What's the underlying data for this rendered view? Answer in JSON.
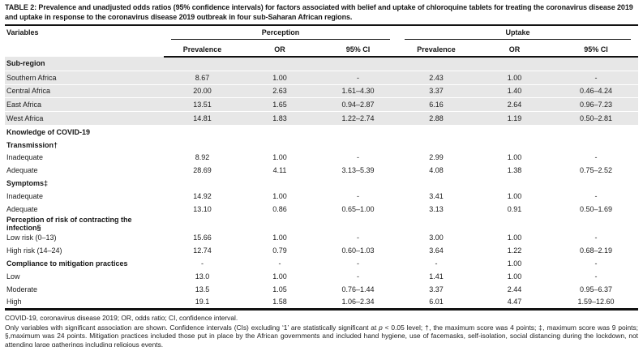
{
  "title": "TABLE 2: Prevalence and unadjusted odds ratios (95% confidence intervals) for factors associated with belief and uptake of chloroquine tablets for treating the coronavirus disease 2019 and uptake in response to the coronavirus disease 2019 outbreak in four sub-Saharan African regions.",
  "table": {
    "variables_header": "Variables",
    "group_headers": {
      "perception": "Perception",
      "uptake": "Uptake"
    },
    "sub_headers": [
      "Prevalence",
      "OR",
      "95% CI",
      "Prevalence",
      "OR",
      "95% CI"
    ],
    "shaded_row_color": "#e7e7e7",
    "rows": [
      {
        "label": "Sub-region",
        "section": true,
        "shaded": true,
        "values": [
          "",
          "",
          "",
          "",
          "",
          ""
        ]
      },
      {
        "label": "Southern Africa",
        "section": false,
        "shaded": true,
        "values": [
          "8.67",
          "1.00",
          "-",
          "2.43",
          "1.00",
          "-"
        ]
      },
      {
        "label": "Central Africa",
        "section": false,
        "shaded": true,
        "values": [
          "20.00",
          "2.63",
          "1.61–4.30",
          "3.37",
          "1.40",
          "0.46–4.24"
        ]
      },
      {
        "label": "East Africa",
        "section": false,
        "shaded": true,
        "values": [
          "13.51",
          "1.65",
          "0.94–2.87",
          "6.16",
          "2.64",
          "0.96–7.23"
        ]
      },
      {
        "label": "West Africa",
        "section": false,
        "shaded": true,
        "values": [
          "14.81",
          "1.83",
          "1.22–2.74",
          "2.88",
          "1.19",
          "0.50–2.81"
        ]
      },
      {
        "label": "Knowledge of COVID-19",
        "section": true,
        "shaded": false,
        "values": [
          "",
          "",
          "",
          "",
          "",
          ""
        ]
      },
      {
        "label": "Transmission†",
        "section": true,
        "shaded": false,
        "values": [
          "",
          "",
          "",
          "",
          "",
          ""
        ]
      },
      {
        "label": "Inadequate",
        "section": false,
        "shaded": false,
        "values": [
          "8.92",
          "1.00",
          "-",
          "2.99",
          "1.00",
          "-"
        ]
      },
      {
        "label": "Adequate",
        "section": false,
        "shaded": false,
        "values": [
          "28.69",
          "4.11",
          "3.13–5.39",
          "4.08",
          "1.38",
          "0.75–2.52"
        ]
      },
      {
        "label": "Symptoms‡",
        "section": true,
        "shaded": false,
        "values": [
          "",
          "",
          "",
          "",
          "",
          ""
        ]
      },
      {
        "label": "Inadequate",
        "section": false,
        "shaded": false,
        "values": [
          "14.92",
          "1.00",
          "-",
          "3.41",
          "1.00",
          "-"
        ]
      },
      {
        "label": "Adequate",
        "section": false,
        "shaded": false,
        "values": [
          "13.10",
          "0.86",
          "0.65–1.00",
          "3.13",
          "0.91",
          "0.50–1.69"
        ]
      },
      {
        "label": "Perception of risk of contracting the infection§",
        "section": true,
        "shaded": false,
        "values": [
          "",
          "",
          "",
          "",
          "",
          ""
        ]
      },
      {
        "label": "Low risk (0–13)",
        "section": false,
        "shaded": false,
        "values": [
          "15.66",
          "1.00",
          "-",
          "3.00",
          "1.00",
          "-"
        ]
      },
      {
        "label": "High risk (14–24)",
        "section": false,
        "shaded": false,
        "values": [
          "12.74",
          "0.79",
          "0.60–1.03",
          "3.64",
          "1.22",
          "0.68–2.19"
        ]
      },
      {
        "label": "Compliance to mitigation practices",
        "section": true,
        "shaded": false,
        "values": [
          "-",
          "-",
          "-",
          "-",
          "1.00",
          "-"
        ]
      },
      {
        "label": "Low",
        "section": false,
        "shaded": false,
        "values": [
          "13.0",
          "1.00",
          "-",
          "1.41",
          "1.00",
          "-"
        ]
      },
      {
        "label": "Moderate",
        "section": false,
        "shaded": false,
        "values": [
          "13.5",
          "1.05",
          "0.76–1.44",
          "3.37",
          "2.44",
          "0.95–6.37"
        ]
      },
      {
        "label": "High",
        "section": false,
        "shaded": false,
        "values": [
          "19.1",
          "1.58",
          "1.06–2.34",
          "6.01",
          "4.47",
          "1.59–12.60"
        ]
      }
    ]
  },
  "footnotes": {
    "abbreviations": "COVID-19, coronavirus disease 2019; OR, odds ratio; CI, confidence interval.",
    "note_pre": "Only variables with significant association are shown. Confidence intervals (CIs) excluding ‘1’ are statistically significant at ",
    "note_italic": "p",
    "note_post": " < 0.05 level; †, the maximum score was 4 points; ‡, maximum score was 9 points; §,maximum was 24 points. Mitigation practices included those put in place by the African governments and included hand hygiene, use of facemasks, self-isolation, social distancing during the lockdown, not attending large gatherings including religious events."
  }
}
